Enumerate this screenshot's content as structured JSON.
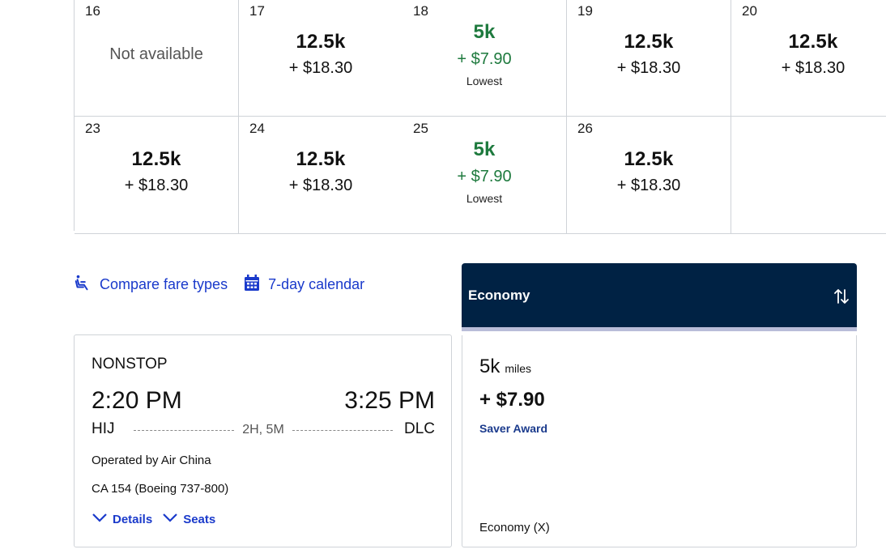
{
  "calendar": {
    "row1": [
      {
        "date": "16",
        "status": "Not available"
      },
      {
        "date": "17",
        "miles": "12.5k",
        "cash": "+ $18.30"
      },
      {
        "date": "18",
        "miles": "5k",
        "cash": "+ $7.90",
        "tag": "Lowest"
      },
      {
        "date": "19",
        "miles": "12.5k",
        "cash": "+ $18.30"
      },
      {
        "date": "20",
        "miles": "12.5k",
        "cash": "+ $18.30"
      }
    ],
    "row2": [
      {
        "date": "23",
        "miles": "12.5k",
        "cash": "+ $18.30"
      },
      {
        "date": "24",
        "miles": "12.5k",
        "cash": "+ $18.30"
      },
      {
        "date": "25",
        "miles": "5k",
        "cash": "+ $7.90",
        "tag": "Lowest"
      },
      {
        "date": "26",
        "miles": "12.5k",
        "cash": "+ $18.30"
      }
    ]
  },
  "links": {
    "compare": "Compare fare types",
    "calendar7": "7-day calendar"
  },
  "flight": {
    "stops": "NONSTOP",
    "departure_time": "2:20 PM",
    "arrival_time": "3:25 PM",
    "origin": "HIJ",
    "destination": "DLC",
    "duration": "2H, 5M",
    "operated_by": "Operated by Air China",
    "equipment": "CA 154 (Boeing 737-800)",
    "details_label": "Details",
    "seats_label": "Seats"
  },
  "fare": {
    "header": "Economy",
    "miles": "5k",
    "miles_unit": "miles",
    "price": "+ $7.90",
    "award_type": "Saver Award",
    "cabin": "Economy (X)"
  },
  "colors": {
    "link": "#1a3acb",
    "lowest": "#1e7a3e",
    "header_bg": "#002244"
  }
}
